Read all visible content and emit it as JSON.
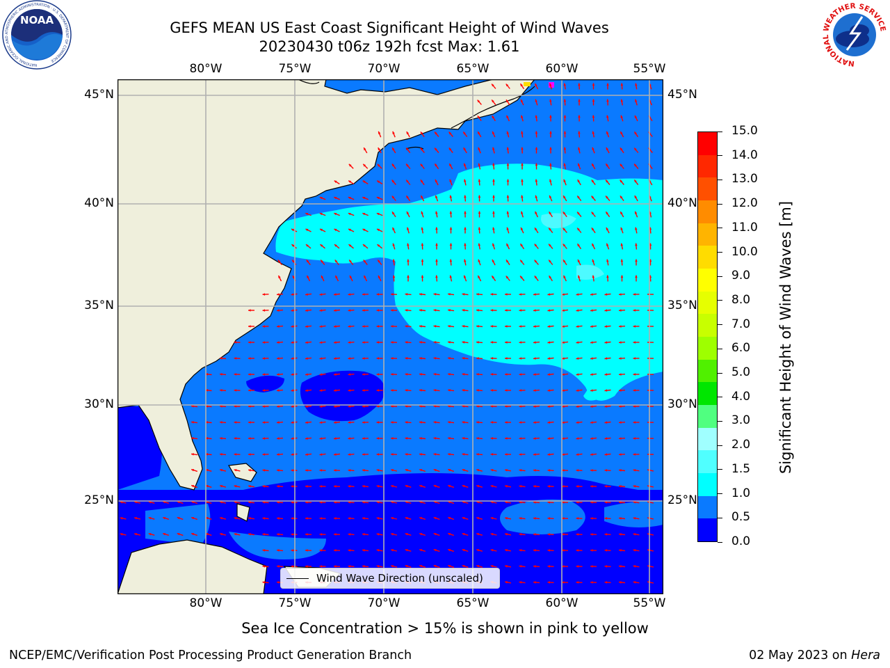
{
  "title": {
    "line1": "GEFS MEAN US East Coast Significant Height of Wind Waves",
    "line2": "20230430 t06z 192h fcst   Max: 1.61"
  },
  "map": {
    "lon_ticks": [
      "80°W",
      "75°W",
      "70°W",
      "65°W",
      "60°W",
      "55°W"
    ],
    "lat_ticks": [
      "45°N",
      "40°N",
      "35°N",
      "30°N",
      "25°N"
    ],
    "legend_label": "Wind Wave Direction (unscaled)",
    "colors": {
      "land": "#efefdc",
      "ocean_0_0.5": "#0000ff",
      "ocean_0.5_1": "#0a7aff",
      "ocean_1_1.5": "#00ffff",
      "ocean_1.5_2": "#4dfaff",
      "arrow": "#ff0000",
      "grid": "#b0b0b0"
    }
  },
  "colorbar": {
    "title": "Significant Height of Wind Waves [m]",
    "labels": [
      "15.0",
      "14.0",
      "13.0",
      "12.0",
      "11.0",
      "10.0",
      "9.0",
      "8.0",
      "7.0",
      "6.0",
      "5.0",
      "4.0",
      "3.0",
      "2.0",
      "1.5",
      "1.0",
      "0.5",
      "0.0"
    ],
    "colors_top_to_bottom": [
      "#ff0000",
      "#ff2800",
      "#ff5000",
      "#ff8c00",
      "#ffb400",
      "#ffdc00",
      "#ffff00",
      "#e6ff00",
      "#c8ff00",
      "#9eff00",
      "#50f000",
      "#00e600",
      "#50ff80",
      "#a0ffff",
      "#50ffff",
      "#00ffff",
      "#0a7aff",
      "#0000ff"
    ]
  },
  "subtitle": "Sea Ice Concentration > 15% is shown in pink to yellow",
  "footer": {
    "left": "NCEP/EMC/Verification Post Processing Product Generation Branch",
    "date": "02 May 2023 on ",
    "host": "Hera"
  },
  "logos": {
    "noaa_text": "NOAA",
    "noaa_ring": "NATIONAL OCEANIC AND ATMOSPHERIC ADMINISTRATION · U.S. DEPARTMENT OF COMMERCE",
    "nws_ring": "NATIONAL WEATHER SERVICE"
  }
}
